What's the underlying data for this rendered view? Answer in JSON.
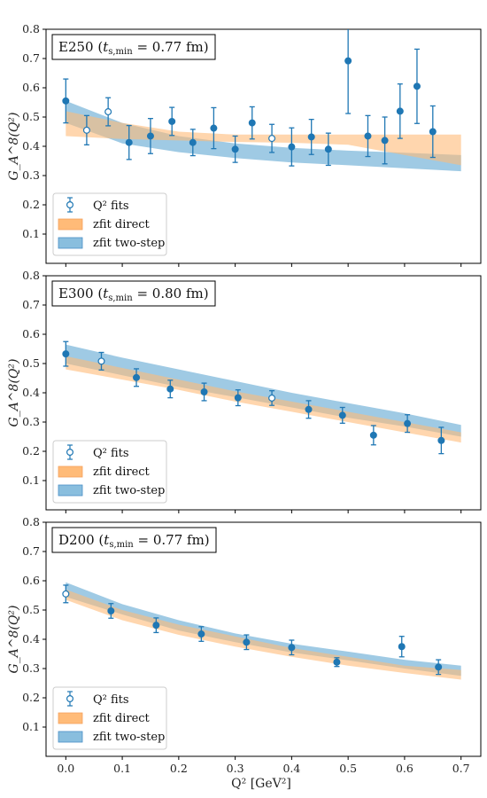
{
  "figure": {
    "xlabel": "Q² [GeV²]",
    "ylabel": "G_A^8(Q²)"
  },
  "legend": {
    "items": [
      {
        "label": "Q² fits",
        "kind": "marker-open"
      },
      {
        "label": "zfit direct",
        "kind": "band-orange"
      },
      {
        "label": "zfit two-step",
        "kind": "band-blue"
      }
    ]
  },
  "colors": {
    "points": "#1f77b4",
    "band_direct": "#ffbb78",
    "band_two_step": "#6baed6",
    "overlap": "#c9a27c"
  },
  "chart_data": [
    {
      "type": "scatter",
      "title": "E250  (t_{s,min} = 0.77 fm)",
      "ylim": [
        0,
        0.8
      ],
      "xlim": [
        -0.035,
        0.735
      ],
      "yticks": [
        "0.1",
        "0.2",
        "0.3",
        "0.4",
        "0.5",
        "0.6",
        "0.7",
        "0.8"
      ],
      "xticks": [],
      "legend_position": "bottom-left",
      "points": [
        {
          "x": 0.0,
          "y": 0.555,
          "err": 0.075,
          "open": false
        },
        {
          "x": 0.037,
          "y": 0.455,
          "err": 0.05,
          "open": true
        },
        {
          "x": 0.075,
          "y": 0.518,
          "err": 0.048,
          "open": true
        },
        {
          "x": 0.112,
          "y": 0.413,
          "err": 0.058,
          "open": false
        },
        {
          "x": 0.15,
          "y": 0.435,
          "err": 0.06,
          "open": false
        },
        {
          "x": 0.188,
          "y": 0.485,
          "err": 0.048,
          "open": false
        },
        {
          "x": 0.225,
          "y": 0.413,
          "err": 0.045,
          "open": false
        },
        {
          "x": 0.262,
          "y": 0.462,
          "err": 0.07,
          "open": false
        },
        {
          "x": 0.3,
          "y": 0.39,
          "err": 0.045,
          "open": false
        },
        {
          "x": 0.33,
          "y": 0.48,
          "err": 0.055,
          "open": false
        },
        {
          "x": 0.365,
          "y": 0.427,
          "err": 0.048,
          "open": true
        },
        {
          "x": 0.4,
          "y": 0.398,
          "err": 0.065,
          "open": false
        },
        {
          "x": 0.435,
          "y": 0.432,
          "err": 0.06,
          "open": false
        },
        {
          "x": 0.465,
          "y": 0.39,
          "err": 0.055,
          "open": false
        },
        {
          "x": 0.5,
          "y": 0.692,
          "err": 0.18,
          "open": false
        },
        {
          "x": 0.535,
          "y": 0.435,
          "err": 0.07,
          "open": false
        },
        {
          "x": 0.565,
          "y": 0.42,
          "err": 0.08,
          "open": false
        },
        {
          "x": 0.592,
          "y": 0.52,
          "err": 0.093,
          "open": false
        },
        {
          "x": 0.622,
          "y": 0.605,
          "err": 0.127,
          "open": false
        },
        {
          "x": 0.65,
          "y": 0.45,
          "err": 0.088,
          "open": false
        }
      ],
      "band_direct": {
        "x": [
          0,
          0.1,
          0.2,
          0.3,
          0.4,
          0.5,
          0.6,
          0.7
        ],
        "lower": [
          0.435,
          0.425,
          0.42,
          0.415,
          0.412,
          0.405,
          0.37,
          0.335
        ],
        "upper": [
          0.52,
          0.48,
          0.45,
          0.44,
          0.44,
          0.44,
          0.44,
          0.44
        ]
      },
      "band_two_step": {
        "x": [
          0,
          0.1,
          0.2,
          0.3,
          0.4,
          0.5,
          0.6,
          0.7
        ],
        "lower": [
          0.48,
          0.41,
          0.38,
          0.36,
          0.345,
          0.335,
          0.325,
          0.315
        ],
        "upper": [
          0.555,
          0.48,
          0.435,
          0.41,
          0.395,
          0.385,
          0.378,
          0.37
        ]
      }
    },
    {
      "type": "scatter",
      "title": "E300  (t_{s,min} = 0.80 fm)",
      "ylim": [
        0,
        0.8
      ],
      "xlim": [
        -0.035,
        0.735
      ],
      "yticks": [
        "0.1",
        "0.2",
        "0.3",
        "0.4",
        "0.5",
        "0.6",
        "0.7",
        "0.8"
      ],
      "xticks": [],
      "legend_position": "bottom-left",
      "points": [
        {
          "x": 0.0,
          "y": 0.533,
          "err": 0.042,
          "open": false
        },
        {
          "x": 0.063,
          "y": 0.508,
          "err": 0.03,
          "open": true
        },
        {
          "x": 0.125,
          "y": 0.452,
          "err": 0.03,
          "open": false
        },
        {
          "x": 0.185,
          "y": 0.413,
          "err": 0.03,
          "open": false
        },
        {
          "x": 0.245,
          "y": 0.403,
          "err": 0.03,
          "open": false
        },
        {
          "x": 0.305,
          "y": 0.383,
          "err": 0.027,
          "open": false
        },
        {
          "x": 0.365,
          "y": 0.382,
          "err": 0.025,
          "open": true
        },
        {
          "x": 0.43,
          "y": 0.343,
          "err": 0.03,
          "open": false
        },
        {
          "x": 0.49,
          "y": 0.323,
          "err": 0.027,
          "open": false
        },
        {
          "x": 0.545,
          "y": 0.255,
          "err": 0.033,
          "open": false
        },
        {
          "x": 0.605,
          "y": 0.295,
          "err": 0.03,
          "open": false
        },
        {
          "x": 0.665,
          "y": 0.237,
          "err": 0.045,
          "open": false
        }
      ],
      "band_direct": {
        "x": [
          0,
          0.1,
          0.2,
          0.3,
          0.4,
          0.5,
          0.6,
          0.7
        ],
        "lower": [
          0.48,
          0.445,
          0.41,
          0.37,
          0.335,
          0.3,
          0.265,
          0.23
        ],
        "upper": [
          0.525,
          0.485,
          0.445,
          0.405,
          0.37,
          0.335,
          0.3,
          0.265
        ]
      },
      "band_two_step": {
        "x": [
          0,
          0.1,
          0.2,
          0.3,
          0.4,
          0.5,
          0.6,
          0.7
        ],
        "lower": [
          0.5,
          0.46,
          0.42,
          0.385,
          0.35,
          0.315,
          0.285,
          0.25
        ],
        "upper": [
          0.565,
          0.52,
          0.48,
          0.44,
          0.4,
          0.365,
          0.33,
          0.29
        ]
      }
    },
    {
      "type": "scatter",
      "title": "D200  (t_{s,min} = 0.77 fm)",
      "ylim": [
        0,
        0.8
      ],
      "xlim": [
        -0.035,
        0.735
      ],
      "yticks": [
        "0.1",
        "0.2",
        "0.3",
        "0.4",
        "0.5",
        "0.6",
        "0.7",
        "0.8"
      ],
      "xticks": [
        "0.0",
        "0.1",
        "0.2",
        "0.3",
        "0.4",
        "0.5",
        "0.6",
        "0.7"
      ],
      "legend_position": "bottom-left",
      "points": [
        {
          "x": 0.0,
          "y": 0.555,
          "err": 0.03,
          "open": true
        },
        {
          "x": 0.08,
          "y": 0.497,
          "err": 0.025,
          "open": false
        },
        {
          "x": 0.16,
          "y": 0.448,
          "err": 0.025,
          "open": false
        },
        {
          "x": 0.24,
          "y": 0.418,
          "err": 0.025,
          "open": false
        },
        {
          "x": 0.32,
          "y": 0.39,
          "err": 0.025,
          "open": false
        },
        {
          "x": 0.4,
          "y": 0.372,
          "err": 0.025,
          "open": false
        },
        {
          "x": 0.48,
          "y": 0.322,
          "err": 0.015,
          "open": false
        },
        {
          "x": 0.595,
          "y": 0.375,
          "err": 0.035,
          "open": false
        },
        {
          "x": 0.66,
          "y": 0.305,
          "err": 0.025,
          "open": false
        }
      ],
      "band_direct": {
        "x": [
          0,
          0.1,
          0.2,
          0.3,
          0.4,
          0.5,
          0.6,
          0.7
        ],
        "lower": [
          0.535,
          0.465,
          0.415,
          0.375,
          0.34,
          0.31,
          0.285,
          0.262
        ],
        "upper": [
          0.57,
          0.5,
          0.45,
          0.41,
          0.37,
          0.34,
          0.31,
          0.295
        ]
      },
      "band_two_step": {
        "x": [
          0,
          0.1,
          0.2,
          0.3,
          0.4,
          0.5,
          0.6,
          0.7
        ],
        "lower": [
          0.545,
          0.485,
          0.43,
          0.39,
          0.355,
          0.328,
          0.3,
          0.275
        ],
        "upper": [
          0.595,
          0.52,
          0.465,
          0.42,
          0.385,
          0.358,
          0.33,
          0.31
        ]
      }
    }
  ]
}
